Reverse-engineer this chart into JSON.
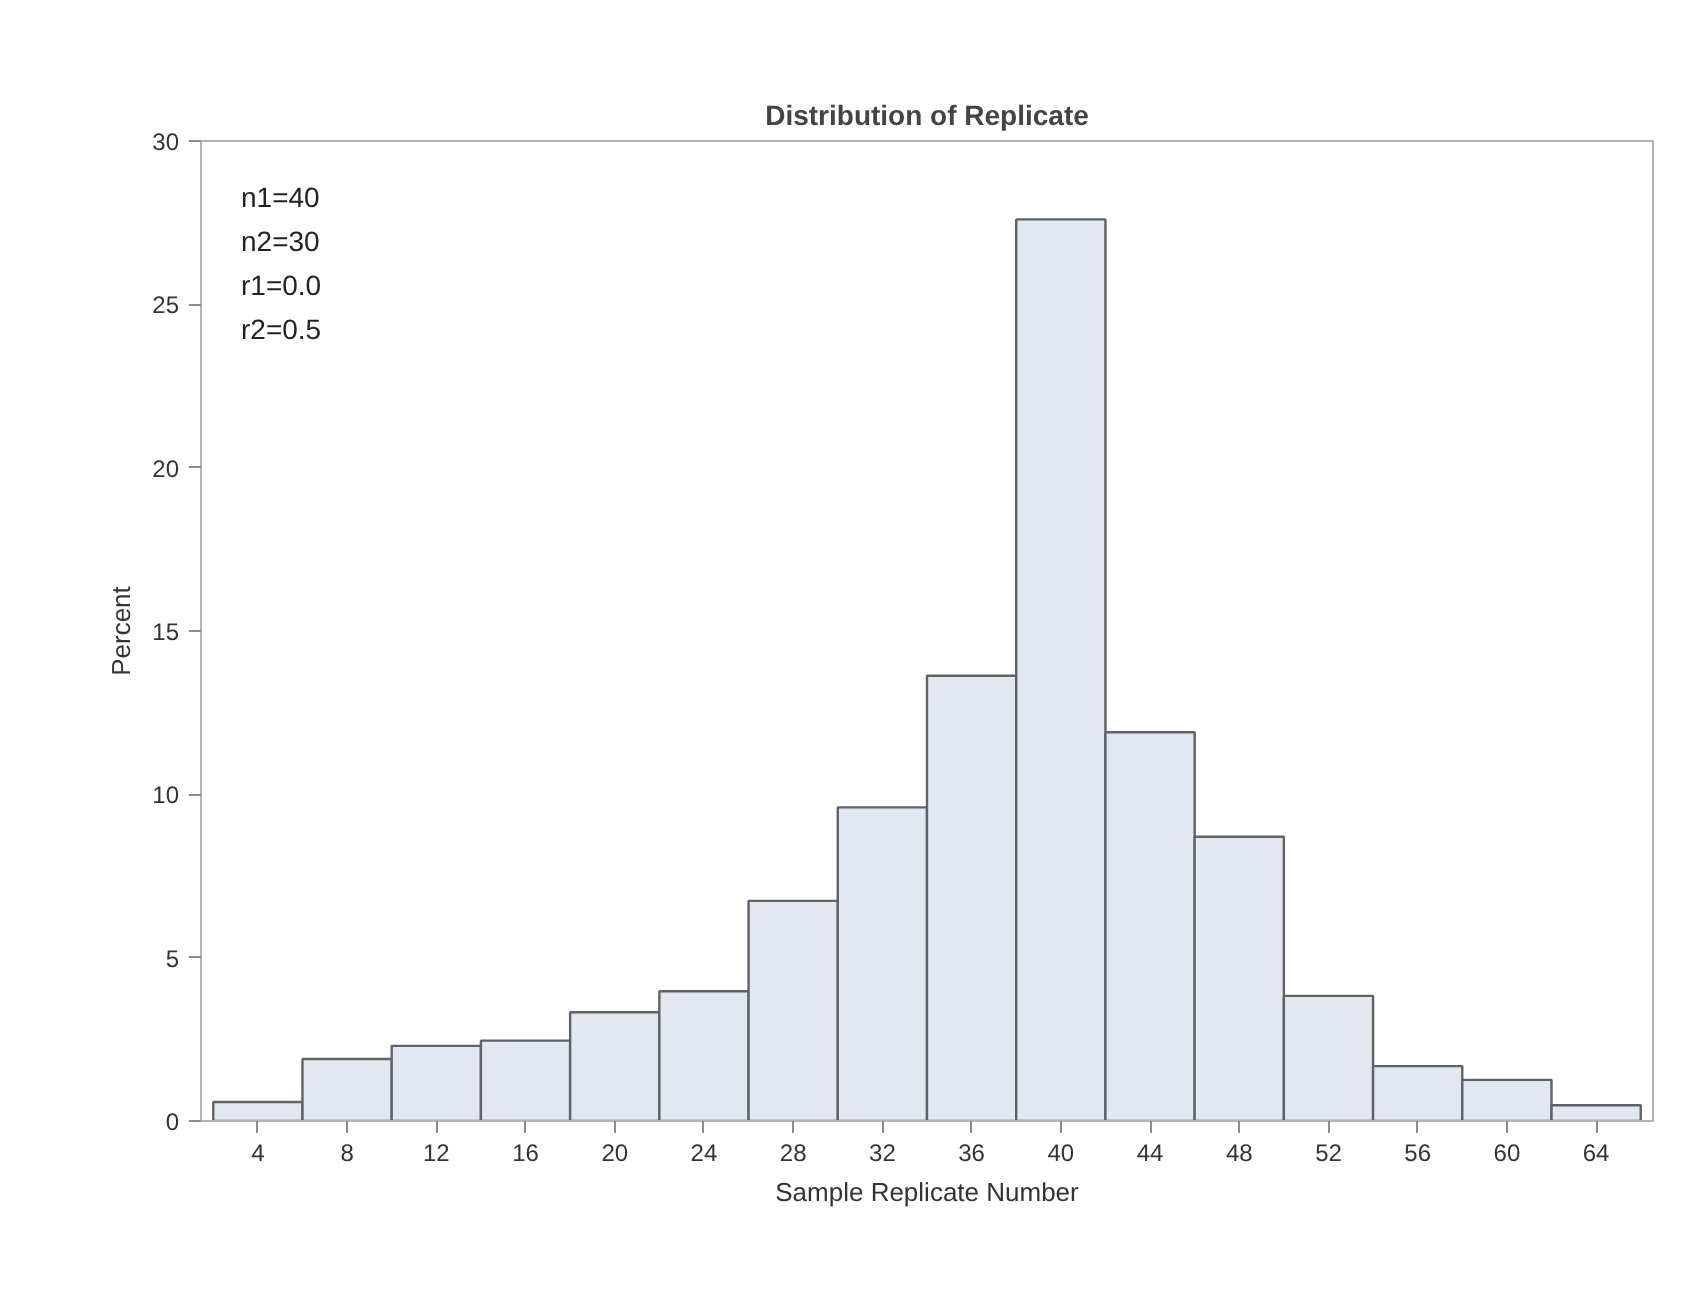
{
  "chart_data": {
    "type": "histogram",
    "title": "Distribution of Replicate",
    "xlabel": "Sample Replicate Number",
    "ylabel": "Percent",
    "bins": [
      2,
      6,
      10,
      14,
      18,
      22,
      26,
      30,
      34,
      38,
      42,
      46,
      50,
      54,
      58,
      62,
      66
    ],
    "values": [
      0.58,
      1.9,
      2.3,
      2.46,
      3.33,
      3.97,
      6.74,
      9.6,
      13.63,
      27.6,
      11.9,
      8.7,
      3.83,
      1.68,
      1.26,
      0.48
    ],
    "color": "#e3e7f0",
    "xlim": [
      1.45,
      66.55
    ],
    "ylim": [
      0,
      30
    ],
    "xticks": [
      4,
      8,
      12,
      16,
      20,
      24,
      28,
      32,
      36,
      40,
      44,
      48,
      52,
      56,
      60,
      64
    ],
    "yticks": [
      0,
      5,
      10,
      15,
      20,
      25,
      30
    ],
    "grid": false,
    "annotations": [
      "n1=40",
      "n2=30",
      "r1=0.0",
      "r2=0.5"
    ]
  }
}
